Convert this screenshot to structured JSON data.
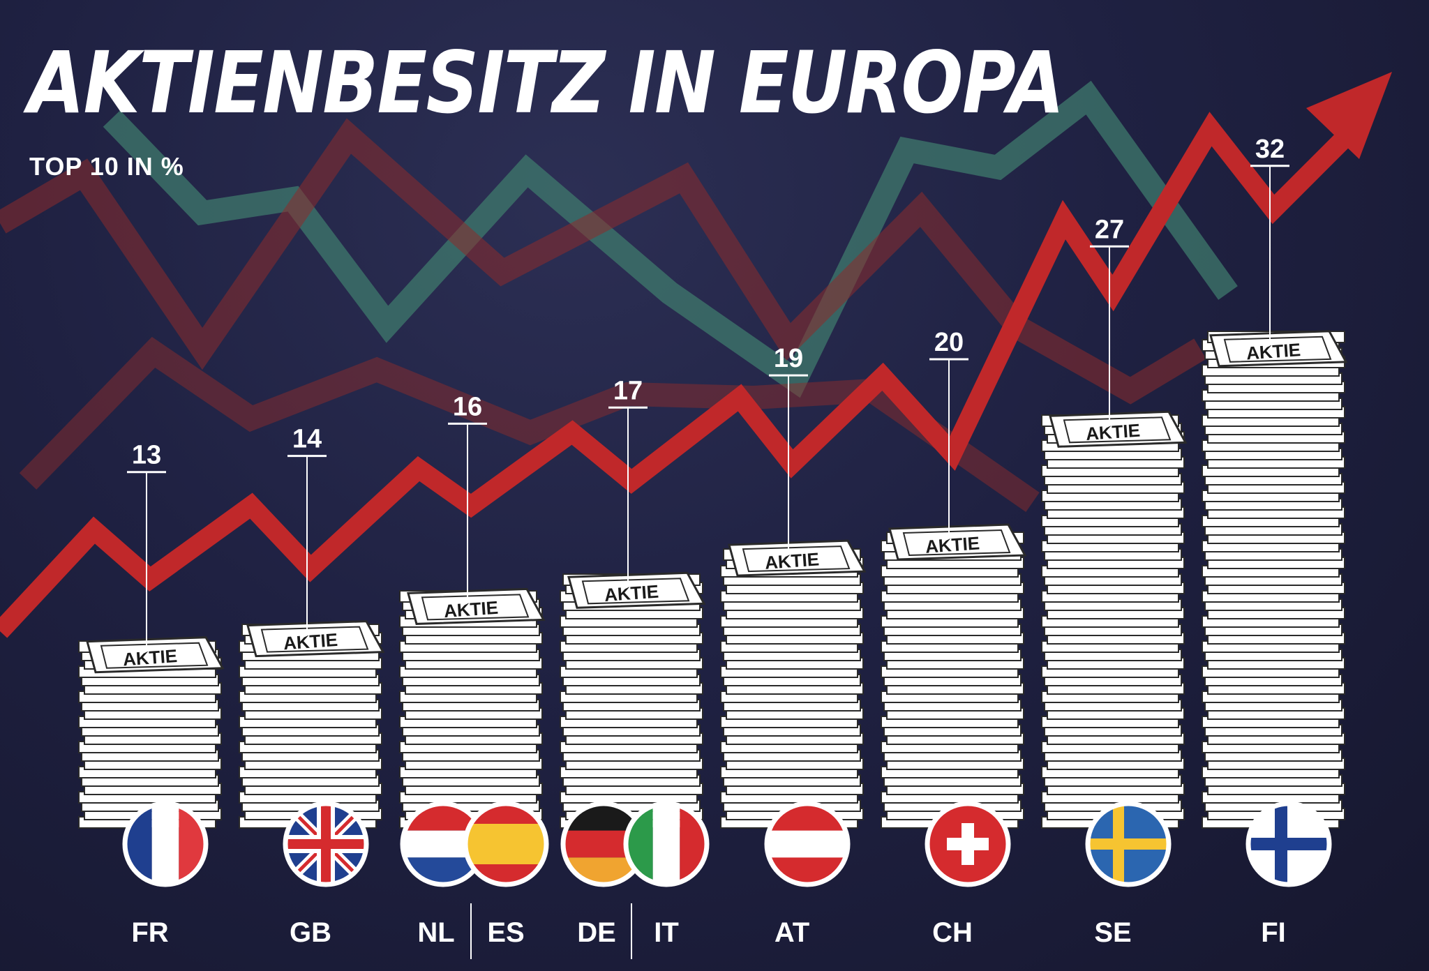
{
  "title": "AKTIENBESITZ IN EUROPA",
  "subtitle": "TOP 10 IN %",
  "stack_label": "AKTIE",
  "colors": {
    "arrow": "#c0282a",
    "bg_line_green": "#3f7a6c",
    "bg_line_red": "#8c2c2c",
    "text": "#ffffff"
  },
  "chart_data": {
    "type": "bar",
    "title": "AKTIENBESITZ IN EUROPA",
    "subtitle": "TOP 10 IN %",
    "unit": "%",
    "categories": [
      "FR",
      "GB",
      "NL | ES",
      "DE | IT",
      "AT",
      "CH",
      "SE",
      "FI"
    ],
    "values": [
      13,
      14,
      16,
      17,
      19,
      20,
      27,
      32
    ],
    "ylim": [
      0,
      32
    ],
    "grid": false,
    "legend": "none",
    "country_codes": [
      [
        "FR"
      ],
      [
        "GB"
      ],
      [
        "NL",
        "ES"
      ],
      [
        "DE",
        "IT"
      ],
      [
        "AT"
      ],
      [
        "CH"
      ],
      [
        "SE"
      ],
      [
        "FI"
      ]
    ],
    "flags": [
      [
        "france"
      ],
      [
        "united-kingdom"
      ],
      [
        "netherlands",
        "spain"
      ],
      [
        "germany",
        "italy"
      ],
      [
        "austria"
      ],
      [
        "switzerland"
      ],
      [
        "sweden"
      ],
      [
        "finland"
      ]
    ]
  }
}
